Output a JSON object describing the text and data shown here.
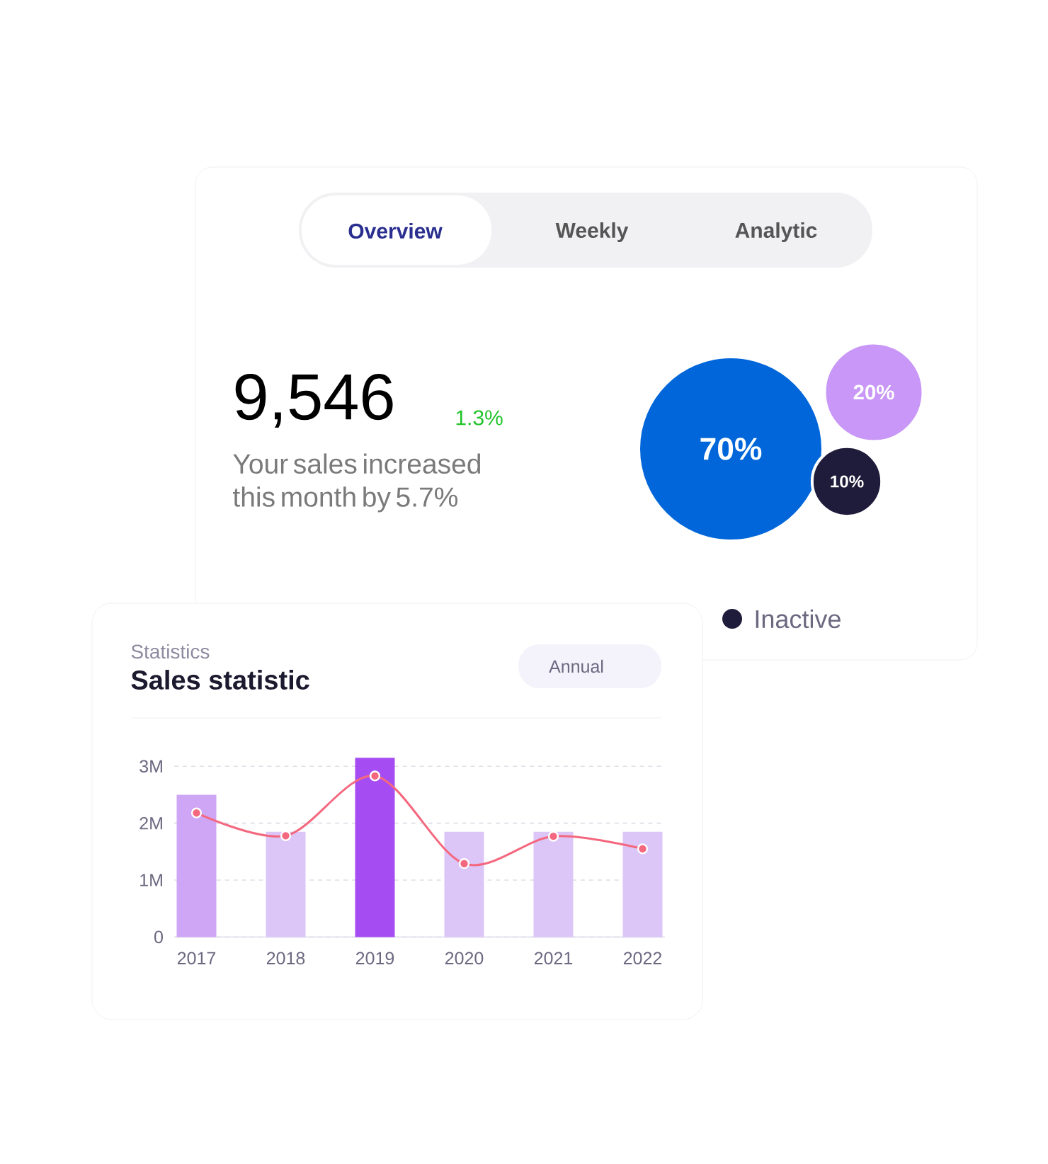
{
  "chart_data": [
    {
      "type": "other",
      "annotations": [
        "Overview",
        "Weekly",
        "Analytic",
        "9,546",
        "1.3%",
        "Your sales increased this month by 5.7%",
        "Inactive"
      ],
      "values": [
        70,
        20,
        10
      ],
      "value_labels": [
        "70%",
        "20%",
        "10%"
      ],
      "colors": [
        "#0066d9",
        "#c897f7",
        "#1f1b3a"
      ]
    },
    {
      "type": "bar",
      "subtitle": "Statistics",
      "title": "Sales statistic",
      "annotations": [
        "Annual"
      ],
      "categories": [
        "2017",
        "2018",
        "2019",
        "2020",
        "2021",
        "2022"
      ],
      "series": [
        {
          "type": "bar",
          "colors": [
            "#cfa6f6",
            "#dcc6f8",
            "#a54df2",
            "#dcc6f8",
            "#dcc6f8",
            "#dcc6f8"
          ],
          "values": [
            2.5,
            1.85,
            3.15,
            1.85,
            1.85,
            1.85
          ]
        },
        {
          "type": "line",
          "color": "#f4687f",
          "values": [
            2.18,
            1.78,
            2.83,
            1.29,
            1.77,
            1.55
          ]
        }
      ],
      "ylim": [
        0,
        3.2
      ],
      "yticks": [
        0,
        {
          "value": 1,
          "label": "1M"
        },
        {
          "value": 2,
          "label": "2M"
        },
        {
          "value": 3,
          "label": "3M"
        }
      ],
      "grid": "y",
      "marker": "circle"
    }
  ]
}
